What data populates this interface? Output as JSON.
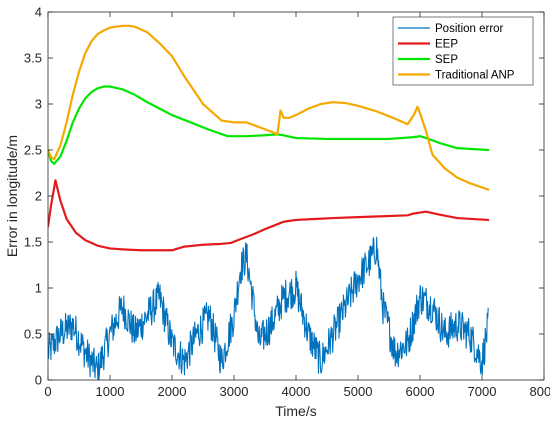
{
  "chart_data": {
    "type": "line",
    "xlabel": "Time/s",
    "ylabel": "Error in longitude/m",
    "xlim": [
      0,
      8000
    ],
    "ylim": [
      0,
      4
    ],
    "xticks": [
      0,
      1000,
      2000,
      3000,
      4000,
      5000,
      6000,
      7000,
      8000
    ],
    "yticks": [
      0,
      0.5,
      1,
      1.5,
      2,
      2.5,
      3,
      3.5,
      4
    ],
    "xtick_labels": [
      "0",
      "1000",
      "2000",
      "3000",
      "4000",
      "5000",
      "6000",
      "7000",
      "8000"
    ],
    "ytick_labels": [
      "0",
      "0.5",
      "1",
      "1.5",
      "2",
      "2.5",
      "3",
      "3.5",
      "4"
    ],
    "grid": false,
    "legend_position": "top-right",
    "series": [
      {
        "name": "Position error",
        "color": "#0072BD",
        "style": "noisy",
        "x": [
          0,
          200,
          400,
          600,
          800,
          1000,
          1200,
          1400,
          1600,
          1800,
          2000,
          2200,
          2400,
          2600,
          2800,
          3000,
          3100,
          3200,
          3300,
          3400,
          3600,
          3800,
          4000,
          4200,
          4400,
          4600,
          4800,
          5000,
          5200,
          5300,
          5400,
          5600,
          5800,
          6000,
          6200,
          6400,
          6600,
          6800,
          7000,
          7100
        ],
        "y": [
          0.3,
          0.5,
          0.6,
          0.3,
          0.1,
          0.5,
          0.8,
          0.5,
          0.7,
          0.9,
          0.4,
          0.2,
          0.5,
          0.7,
          0.2,
          0.7,
          1.2,
          1.35,
          0.9,
          0.4,
          0.6,
          0.9,
          1.0,
          0.5,
          0.2,
          0.5,
          0.8,
          1.1,
          1.3,
          1.45,
          0.8,
          0.3,
          0.4,
          0.9,
          0.8,
          0.5,
          0.6,
          0.5,
          0.2,
          0.6
        ]
      },
      {
        "name": "EEP",
        "color": "#E41A1C",
        "style": "smooth",
        "x": [
          0,
          50,
          120,
          200,
          300,
          450,
          600,
          800,
          1000,
          1200,
          1500,
          1800,
          2000,
          2200,
          2500,
          2800,
          2950,
          3100,
          3300,
          3500,
          3650,
          3800,
          4000,
          4300,
          4600,
          5000,
          5400,
          5800,
          5900,
          6000,
          6100,
          6300,
          6600,
          7100
        ],
        "y": [
          1.67,
          1.9,
          2.17,
          1.95,
          1.75,
          1.6,
          1.52,
          1.46,
          1.43,
          1.42,
          1.41,
          1.41,
          1.41,
          1.45,
          1.47,
          1.48,
          1.49,
          1.53,
          1.58,
          1.64,
          1.68,
          1.72,
          1.74,
          1.75,
          1.76,
          1.77,
          1.78,
          1.79,
          1.81,
          1.82,
          1.83,
          1.8,
          1.76,
          1.74
        ]
      },
      {
        "name": "SEP",
        "color": "#00E600",
        "style": "smooth",
        "x": [
          0,
          50,
          100,
          200,
          300,
          400,
          500,
          600,
          700,
          800,
          900,
          1000,
          1200,
          1400,
          1600,
          1800,
          2000,
          2300,
          2600,
          2900,
          3200,
          3500,
          3700,
          3800,
          4000,
          4500,
          5000,
          5500,
          5900,
          6000,
          6100,
          6300,
          6600,
          7100
        ],
        "y": [
          2.5,
          2.38,
          2.35,
          2.43,
          2.6,
          2.8,
          2.95,
          3.06,
          3.13,
          3.17,
          3.19,
          3.19,
          3.16,
          3.1,
          3.02,
          2.95,
          2.88,
          2.8,
          2.72,
          2.65,
          2.65,
          2.66,
          2.67,
          2.66,
          2.63,
          2.62,
          2.62,
          2.62,
          2.64,
          2.65,
          2.63,
          2.58,
          2.52,
          2.5
        ]
      },
      {
        "name": "Traditional ANP",
        "color": "#F4A800",
        "style": "smooth",
        "x": [
          0,
          50,
          100,
          200,
          300,
          400,
          500,
          600,
          700,
          800,
          900,
          1000,
          1100,
          1200,
          1300,
          1400,
          1600,
          1800,
          2000,
          2200,
          2500,
          2800,
          3000,
          3200,
          3400,
          3600,
          3700,
          3750,
          3800,
          3900,
          4000,
          4200,
          4400,
          4600,
          4800,
          5000,
          5300,
          5600,
          5800,
          5900,
          5960,
          6000,
          6100,
          6200,
          6400,
          6600,
          6800,
          7100
        ],
        "y": [
          2.5,
          2.42,
          2.4,
          2.55,
          2.8,
          3.1,
          3.35,
          3.55,
          3.68,
          3.76,
          3.8,
          3.83,
          3.84,
          3.85,
          3.85,
          3.84,
          3.78,
          3.66,
          3.52,
          3.3,
          3.0,
          2.82,
          2.8,
          2.8,
          2.75,
          2.7,
          2.67,
          2.93,
          2.85,
          2.85,
          2.88,
          2.95,
          3.0,
          3.02,
          3.01,
          2.98,
          2.92,
          2.84,
          2.78,
          2.88,
          2.97,
          2.9,
          2.7,
          2.45,
          2.3,
          2.2,
          2.14,
          2.07
        ]
      }
    ]
  }
}
